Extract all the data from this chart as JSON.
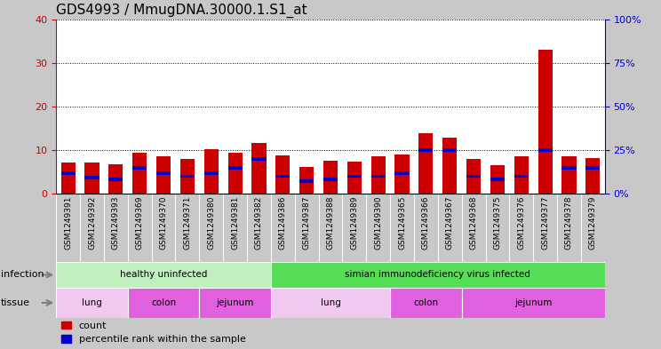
{
  "title": "GDS4993 / MmugDNA.30000.1.S1_at",
  "samples": [
    "GSM1249391",
    "GSM1249392",
    "GSM1249393",
    "GSM1249369",
    "GSM1249370",
    "GSM1249371",
    "GSM1249380",
    "GSM1249381",
    "GSM1249382",
    "GSM1249386",
    "GSM1249387",
    "GSM1249388",
    "GSM1249389",
    "GSM1249390",
    "GSM1249365",
    "GSM1249366",
    "GSM1249367",
    "GSM1249368",
    "GSM1249375",
    "GSM1249376",
    "GSM1249377",
    "GSM1249378",
    "GSM1249379"
  ],
  "counts": [
    7.2,
    7.2,
    6.8,
    9.4,
    8.5,
    8.0,
    10.2,
    9.4,
    11.6,
    8.8,
    6.2,
    7.5,
    7.3,
    8.5,
    9.0,
    13.8,
    12.8,
    8.0,
    6.5,
    8.5,
    33.0,
    8.5,
    8.2
  ],
  "percentiles": [
    12,
    9,
    8,
    15,
    12,
    10,
    12,
    15,
    20,
    10,
    7,
    8,
    10,
    10,
    12,
    25,
    25,
    10,
    8,
    10,
    25,
    15,
    15
  ],
  "bar_color": "#cc0000",
  "pct_color": "#0000cc",
  "left_ylim": [
    0,
    40
  ],
  "left_yticks": [
    0,
    10,
    20,
    30,
    40
  ],
  "right_ylim": [
    0,
    100
  ],
  "right_yticks": [
    0,
    25,
    50,
    75,
    100
  ],
  "right_ylabel_suffix": "%",
  "infection_groups": [
    {
      "label": "healthy uninfected",
      "start": 0,
      "end": 9,
      "color": "#c0f0c0"
    },
    {
      "label": "simian immunodeficiency virus infected",
      "start": 9,
      "end": 23,
      "color": "#55dd55"
    }
  ],
  "tissue_groups": [
    {
      "label": "lung",
      "start": 0,
      "end": 3,
      "color": "#f0c8f0"
    },
    {
      "label": "colon",
      "start": 3,
      "end": 6,
      "color": "#e060e0"
    },
    {
      "label": "jejunum",
      "start": 6,
      "end": 9,
      "color": "#e060e0"
    },
    {
      "label": "lung",
      "start": 9,
      "end": 14,
      "color": "#f0c8f0"
    },
    {
      "label": "colon",
      "start": 14,
      "end": 17,
      "color": "#e060e0"
    },
    {
      "label": "jejunum",
      "start": 17,
      "end": 23,
      "color": "#e060e0"
    }
  ],
  "infection_label": "infection",
  "tissue_label": "tissue",
  "legend_count": "count",
  "legend_pct": "percentile rank within the sample",
  "fig_bg": "#c8c8c8",
  "plot_bg": "#ffffff",
  "xtick_bg": "#d0d0d0",
  "left_tick_color": "#cc0000",
  "right_tick_color": "#0000cc",
  "title_fontsize": 11,
  "label_fontsize": 6.5,
  "bar_width": 0.6,
  "pct_bar_height": 0.8
}
